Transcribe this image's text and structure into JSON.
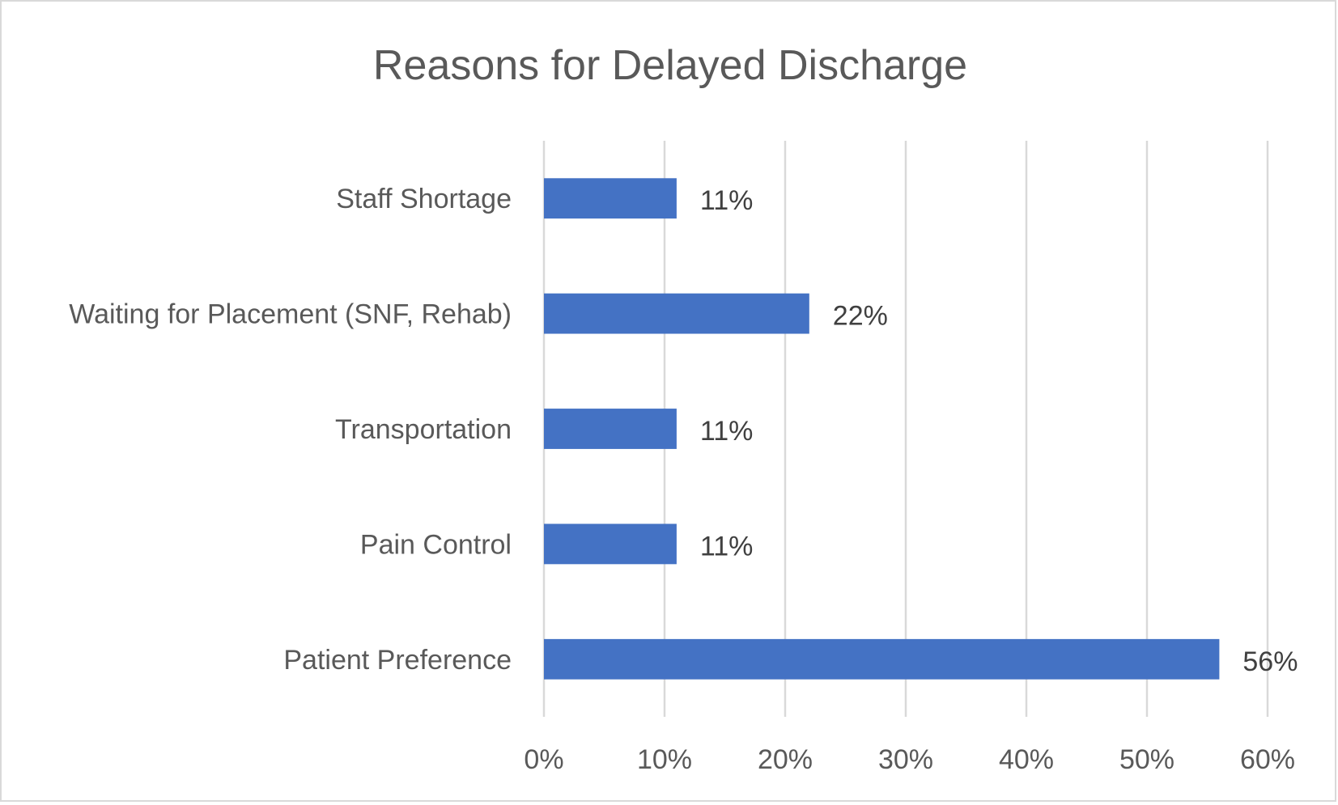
{
  "chart_data": {
    "type": "bar",
    "orientation": "horizontal",
    "title": "Reasons for Delayed Discharge",
    "xlabel": "",
    "ylabel": "",
    "categories": [
      "Staff Shortage",
      "Waiting for Placement (SNF, Rehab)",
      "Transportation",
      "Pain Control",
      "Patient Preference"
    ],
    "values": [
      11,
      22,
      11,
      11,
      56
    ],
    "value_unit": "%",
    "data_labels": [
      "11%",
      "22%",
      "11%",
      "11%",
      "56%"
    ],
    "xlim": [
      0,
      60
    ],
    "x_ticks": [
      0,
      10,
      20,
      30,
      40,
      50,
      60
    ],
    "x_tick_labels": [
      "0%",
      "10%",
      "20%",
      "30%",
      "40%",
      "50%",
      "60%"
    ],
    "grid": "vertical-major",
    "legend": "none",
    "bar_color": "#4472C4"
  }
}
